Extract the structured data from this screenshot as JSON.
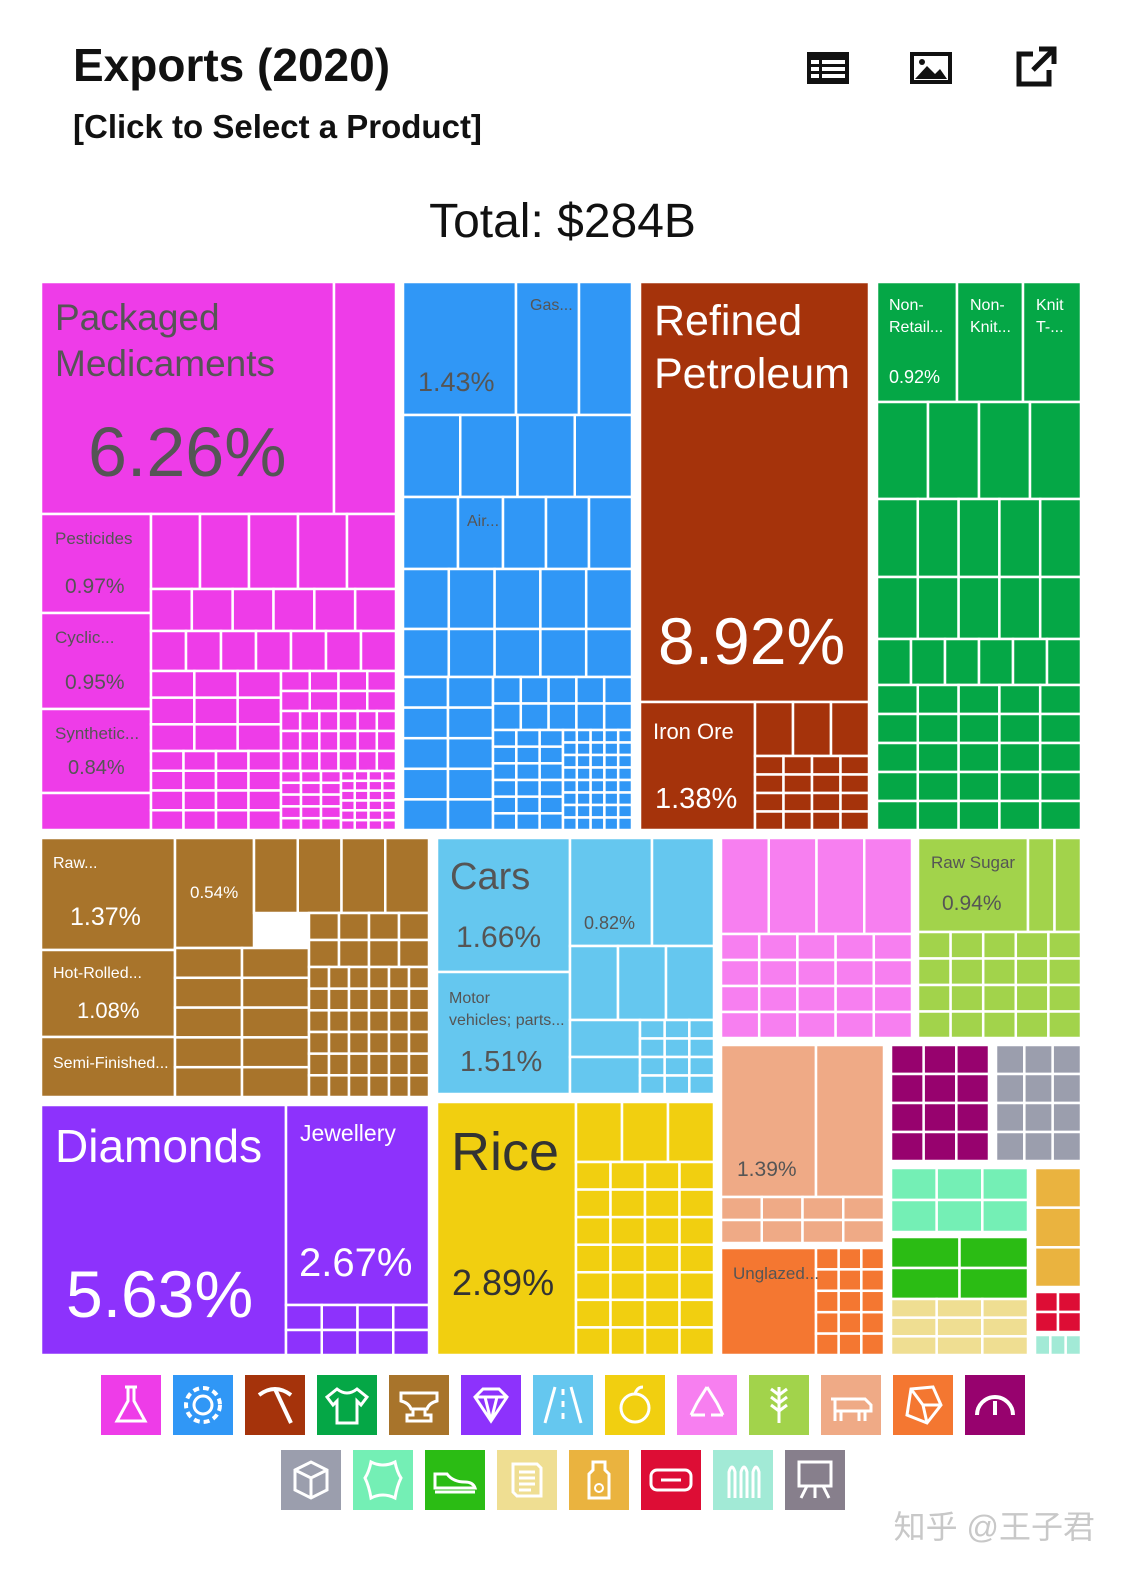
{
  "header": {
    "title": "Exports (2020)",
    "subtitle": "[Click to Select a Product]",
    "total": "Total: $284B",
    "tools": [
      {
        "name": "table-icon"
      },
      {
        "name": "image-icon"
      },
      {
        "name": "external-link-icon"
      }
    ]
  },
  "chart_data": {
    "type": "treemap",
    "title": "Exports (2020)",
    "total": "Total: $284B",
    "labeled_items": [
      {
        "label": "Packaged Medicaments",
        "value": "6.26%",
        "color": "#ee3ce8"
      },
      {
        "label": "Pesticides",
        "value": "0.97%",
        "color": "#ee3ce8"
      },
      {
        "label": "Cyclic...",
        "value": "0.95%",
        "color": "#ee3ce8"
      },
      {
        "label": "Synthetic...",
        "value": "0.84%",
        "color": "#ee3ce8"
      },
      {
        "label": "",
        "value": "1.43%",
        "color": "#3097f6"
      },
      {
        "label": "Gas...",
        "value": "",
        "color": "#3097f6"
      },
      {
        "label": "Air...",
        "value": "",
        "color": "#3097f6"
      },
      {
        "label": "Refined Petroleum",
        "value": "8.92%",
        "color": "#a5330b"
      },
      {
        "label": "Iron Ore",
        "value": "1.38%",
        "color": "#a5330b"
      },
      {
        "label": "Non-Retail...",
        "value": "0.92%",
        "color": "#05a746"
      },
      {
        "label": "Non-Knit...",
        "value": "",
        "color": "#05a746"
      },
      {
        "label": "Knit T-...",
        "value": "",
        "color": "#05a746"
      },
      {
        "label": "Raw...",
        "value": "1.37%",
        "color": "#a8742b"
      },
      {
        "label": "",
        "value": "0.54%",
        "color": "#a8742b"
      },
      {
        "label": "Hot-Rolled...",
        "value": "1.08%",
        "color": "#a8742b"
      },
      {
        "label": "Semi-Finished...",
        "value": "",
        "color": "#a8742b"
      },
      {
        "label": "Cars",
        "value": "1.66%",
        "color": "#65c7ef"
      },
      {
        "label": "",
        "value": "0.82%",
        "color": "#65c7ef"
      },
      {
        "label": "Motor vehicles; parts...",
        "value": "1.51%",
        "color": "#65c7ef"
      },
      {
        "label": "Raw Sugar",
        "value": "0.94%",
        "color": "#a2d34b"
      },
      {
        "label": "Diamonds",
        "value": "5.63%",
        "color": "#8d32fc"
      },
      {
        "label": "Jewellery",
        "value": "2.67%",
        "color": "#8d32fc"
      },
      {
        "label": "Rice",
        "value": "2.89%",
        "color": "#f1cf10"
      },
      {
        "label": "",
        "value": "1.39%",
        "color": "#efaa86"
      },
      {
        "label": "Unglazed...",
        "value": "",
        "color": "#f47731"
      }
    ]
  },
  "categories": [
    {
      "name": "flask-icon",
      "color": "#ee3ce8"
    },
    {
      "name": "gear-icon",
      "color": "#3097f6"
    },
    {
      "name": "pickaxe-icon",
      "color": "#a5330b"
    },
    {
      "name": "tshirt-icon",
      "color": "#05a746"
    },
    {
      "name": "anvil-icon",
      "color": "#a8742b"
    },
    {
      "name": "diamond-icon",
      "color": "#8d32fc"
    },
    {
      "name": "road-icon",
      "color": "#65c7ef"
    },
    {
      "name": "fruit-icon",
      "color": "#f1cf10"
    },
    {
      "name": "recycle-icon",
      "color": "#f77ff0"
    },
    {
      "name": "wheat-icon",
      "color": "#a2d34b"
    },
    {
      "name": "cow-icon",
      "color": "#efaa86"
    },
    {
      "name": "stone-icon",
      "color": "#f47731"
    },
    {
      "name": "gauge-icon",
      "color": "#97026e"
    },
    {
      "name": "box-icon",
      "color": "#9b9ead"
    },
    {
      "name": "hide-icon",
      "color": "#74efb5"
    },
    {
      "name": "shoe-icon",
      "color": "#2bbc14"
    },
    {
      "name": "paper-icon",
      "color": "#efde92"
    },
    {
      "name": "bottle-icon",
      "color": "#eab33f"
    },
    {
      "name": "film-icon",
      "color": "#dd0d35"
    },
    {
      "name": "ammo-icon",
      "color": "#a2ead6"
    },
    {
      "name": "easel-icon",
      "color": "#877f8c"
    }
  ],
  "watermark": "知乎 @王子君"
}
